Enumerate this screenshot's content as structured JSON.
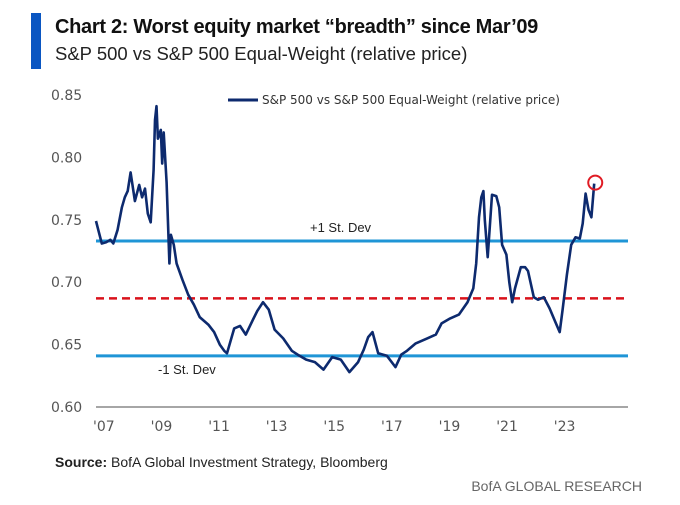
{
  "header": {
    "title": "Chart 2: Worst equity market “breadth” since Mar’09",
    "subtitle": "S&P 500 vs S&P 500 Equal-Weight (relative price)"
  },
  "footer": {
    "source_label": "Source:",
    "source_text": " BofA Global Investment Strategy, Bloomberg",
    "brand": "BofA GLOBAL RESEARCH"
  },
  "colors": {
    "series": "#0d2a6e",
    "std_dev_lines": "#1f95d6",
    "mean_line": "#d9121b",
    "highlight_circle": "#e01b24",
    "axis": "#888888",
    "title_bar": "#0a56c2"
  },
  "chart_data": {
    "type": "line",
    "title": "Chart 2: Worst equity market “breadth” since Mar’09",
    "subtitle": "S&P 500 vs S&P 500 Equal-Weight (relative price)",
    "xlabel": "",
    "ylabel": "",
    "xlim": [
      2007,
      2024.6
    ],
    "ylim": [
      0.6,
      0.85
    ],
    "y_ticks": [
      0.6,
      0.65,
      0.7,
      0.75,
      0.8,
      0.85
    ],
    "y_tick_labels": [
      "0.60",
      "0.65",
      "0.70",
      "0.75",
      "0.80",
      "0.85"
    ],
    "x_ticks": [
      2007,
      2009,
      2011,
      2013,
      2015,
      2017,
      2019,
      2021,
      2023
    ],
    "x_tick_labels": [
      "'07",
      "'09",
      "'11",
      "'13",
      "'15",
      "'17",
      "'19",
      "'21",
      "'23"
    ],
    "grid": false,
    "legend": {
      "position": "top-center",
      "entries": [
        "S&P 500 vs S&P 500 Equal-Weight (relative price)"
      ]
    },
    "series": [
      {
        "name": "S&P 500 vs S&P 500 Equal-Weight (relative price)",
        "x": [
          2007.0,
          2007.1,
          2007.2,
          2007.35,
          2007.5,
          2007.6,
          2007.75,
          2007.9,
          2008.0,
          2008.1,
          2008.2,
          2008.35,
          2008.5,
          2008.6,
          2008.7,
          2008.8,
          2008.9,
          2009.0,
          2009.05,
          2009.1,
          2009.15,
          2009.25,
          2009.3,
          2009.35,
          2009.45,
          2009.55,
          2009.6,
          2009.7,
          2009.8,
          2010.0,
          2010.2,
          2010.4,
          2010.6,
          2010.9,
          2011.1,
          2011.3,
          2011.45,
          2011.55,
          2011.8,
          2012.0,
          2012.2,
          2012.45,
          2012.6,
          2012.8,
          2013.0,
          2013.2,
          2013.5,
          2013.8,
          2014.0,
          2014.3,
          2014.6,
          2014.9,
          2015.2,
          2015.5,
          2015.8,
          2016.1,
          2016.3,
          2016.45,
          2016.6,
          2016.8,
          2017.1,
          2017.4,
          2017.6,
          2017.8,
          2018.1,
          2018.5,
          2018.8,
          2019.0,
          2019.3,
          2019.6,
          2019.9,
          2020.1,
          2020.2,
          2020.3,
          2020.38,
          2020.45,
          2020.5,
          2020.6,
          2020.75,
          2020.9,
          2021.0,
          2021.1,
          2021.25,
          2021.35,
          2021.45,
          2021.55,
          2021.75,
          2021.9,
          2022.0,
          2022.2,
          2022.35,
          2022.55,
          2022.75,
          2022.95,
          2023.1,
          2023.2,
          2023.35,
          2023.5,
          2023.65,
          2023.8,
          2023.9,
          2024.0,
          2024.1,
          2024.2,
          2024.3
        ],
        "y": [
          0.749,
          0.74,
          0.731,
          0.732,
          0.734,
          0.731,
          0.742,
          0.76,
          0.768,
          0.773,
          0.788,
          0.765,
          0.778,
          0.768,
          0.775,
          0.755,
          0.748,
          0.79,
          0.83,
          0.841,
          0.815,
          0.822,
          0.795,
          0.82,
          0.78,
          0.715,
          0.738,
          0.73,
          0.715,
          0.702,
          0.69,
          0.682,
          0.672,
          0.666,
          0.66,
          0.65,
          0.645,
          0.643,
          0.663,
          0.665,
          0.658,
          0.67,
          0.677,
          0.684,
          0.678,
          0.662,
          0.655,
          0.645,
          0.642,
          0.638,
          0.636,
          0.63,
          0.64,
          0.638,
          0.628,
          0.636,
          0.646,
          0.656,
          0.66,
          0.643,
          0.641,
          0.632,
          0.642,
          0.645,
          0.651,
          0.655,
          0.658,
          0.667,
          0.671,
          0.674,
          0.684,
          0.695,
          0.715,
          0.752,
          0.768,
          0.773,
          0.75,
          0.72,
          0.77,
          0.769,
          0.76,
          0.73,
          0.722,
          0.7,
          0.684,
          0.695,
          0.712,
          0.712,
          0.709,
          0.688,
          0.686,
          0.688,
          0.679,
          0.668,
          0.66,
          0.678,
          0.706,
          0.73,
          0.736,
          0.735,
          0.747,
          0.771,
          0.758,
          0.752,
          0.779
        ]
      }
    ],
    "reference_lines": [
      {
        "name": "+1 St. Dev",
        "value": 0.733,
        "style": "solid",
        "label": "+1 St. Dev"
      },
      {
        "name": "mean",
        "value": 0.687,
        "style": "dashed",
        "label": ""
      },
      {
        "name": "-1 St. Dev",
        "value": 0.641,
        "style": "solid",
        "label": "-1 St. Dev"
      }
    ],
    "annotations": [
      {
        "type": "circle",
        "x": 2024.3,
        "y": 0.779,
        "note": "latest reading highlighted"
      }
    ]
  }
}
